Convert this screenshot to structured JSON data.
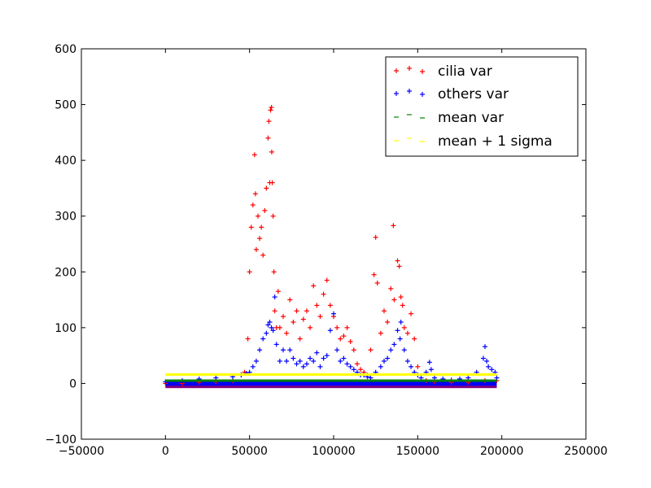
{
  "chart_data": {
    "type": "scatter",
    "title": "",
    "xlabel": "",
    "ylabel": "",
    "xlim": [
      -50000,
      250000
    ],
    "ylim": [
      -100,
      600
    ],
    "grid": false,
    "legend_position": "top-right",
    "xticks": [
      -50000,
      0,
      50000,
      100000,
      150000,
      200000,
      250000
    ],
    "xtick_labels": [
      "−50000",
      "0",
      "50000",
      "100000",
      "150000",
      "200000",
      "250000"
    ],
    "yticks": [
      -100,
      0,
      100,
      200,
      300,
      400,
      500,
      600
    ],
    "ytick_labels": [
      "−100",
      "0",
      "100",
      "200",
      "300",
      "400",
      "500",
      "600"
    ],
    "series": [
      {
        "name": "cilia var",
        "marker": "+",
        "color": "#ff0000",
        "x": [
          0,
          10000,
          20000,
          30000,
          40000,
          47000,
          49000,
          50000,
          51000,
          52000,
          53000,
          53500,
          54000,
          55000,
          56000,
          57000,
          58000,
          59000,
          60000,
          61000,
          61500,
          62000,
          62500,
          63000,
          63200,
          63500,
          64000,
          64500,
          65000,
          66000,
          67000,
          68000,
          70000,
          72000,
          74000,
          76000,
          78000,
          80000,
          82000,
          84000,
          86000,
          88000,
          90000,
          92000,
          94000,
          96000,
          98000,
          100000,
          102000,
          104000,
          106000,
          108000,
          110000,
          112000,
          114000,
          116000,
          118000,
          120000,
          122000,
          124000,
          125000,
          126000,
          128000,
          130000,
          132000,
          134000,
          135500,
          136000,
          138000,
          139000,
          140000,
          141000,
          142000,
          144000,
          146000,
          148000,
          150000,
          155000,
          160000,
          170000,
          180000,
          190000,
          197000
        ],
        "y": [
          0,
          0,
          2,
          3,
          5,
          20,
          80,
          200,
          280,
          320,
          410,
          340,
          240,
          300,
          260,
          280,
          230,
          310,
          350,
          440,
          470,
          360,
          490,
          495,
          415,
          360,
          300,
          200,
          130,
          100,
          165,
          100,
          120,
          90,
          150,
          110,
          130,
          80,
          115,
          130,
          100,
          175,
          140,
          120,
          160,
          185,
          140,
          120,
          100,
          80,
          85,
          100,
          75,
          60,
          35,
          25,
          20,
          15,
          60,
          195,
          262,
          180,
          90,
          130,
          110,
          170,
          283,
          150,
          220,
          210,
          155,
          140,
          100,
          90,
          125,
          80,
          30,
          5,
          3,
          2,
          2,
          5,
          5
        ]
      },
      {
        "name": "others var",
        "marker": "+",
        "color": "#0000ff",
        "x": [
          0,
          10000,
          20000,
          30000,
          40000,
          45000,
          48000,
          50000,
          52000,
          54000,
          56000,
          58000,
          60000,
          61000,
          62000,
          63000,
          64000,
          65000,
          66000,
          68000,
          70000,
          72000,
          74000,
          76000,
          78000,
          80000,
          82000,
          84000,
          86000,
          88000,
          90000,
          92000,
          94000,
          96000,
          98000,
          100000,
          102000,
          104000,
          106000,
          108000,
          110000,
          112000,
          114000,
          116000,
          118000,
          120000,
          122000,
          125000,
          128000,
          130000,
          132000,
          134000,
          136000,
          138000,
          139500,
          140000,
          142000,
          144000,
          146000,
          148000,
          150000,
          152000,
          155000,
          157000,
          158000,
          160000,
          165000,
          170000,
          175000,
          180000,
          185000,
          189000,
          190000,
          191000,
          192000,
          194000,
          196000,
          197000
        ],
        "y": [
          3,
          5,
          8,
          10,
          12,
          15,
          18,
          20,
          30,
          40,
          60,
          80,
          90,
          105,
          110,
          100,
          95,
          155,
          70,
          40,
          60,
          40,
          60,
          45,
          35,
          40,
          30,
          35,
          45,
          40,
          55,
          30,
          45,
          50,
          95,
          125,
          60,
          40,
          45,
          35,
          30,
          25,
          20,
          15,
          15,
          12,
          10,
          20,
          30,
          40,
          45,
          60,
          70,
          95,
          80,
          110,
          60,
          40,
          30,
          20,
          15,
          10,
          20,
          38,
          25,
          10,
          8,
          6,
          8,
          10,
          20,
          45,
          66,
          40,
          30,
          25,
          20,
          10
        ]
      },
      {
        "name": "mean var",
        "marker": "_",
        "color": "#008000",
        "x_range": [
          0,
          197000
        ],
        "y": 5
      },
      {
        "name": "mean + 1 sigma",
        "marker": "_",
        "color": "#ffff00",
        "x_range": [
          0,
          197000
        ],
        "y": 16
      }
    ]
  }
}
